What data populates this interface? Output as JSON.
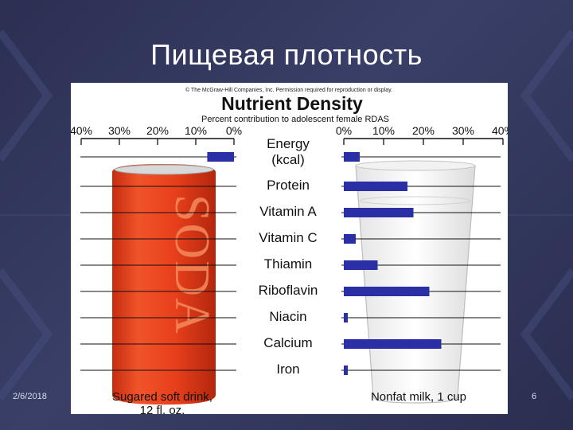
{
  "slide": {
    "title": "Пищевая плотность",
    "date": "2/6/2018",
    "page_number": "6"
  },
  "figure": {
    "copyright": "© The McGraw-Hill Companies, Inc. Permission required for reproduction or display.",
    "can_text": "SODA"
  },
  "colors": {
    "bar": "#2b2fa6",
    "can": "#e8401c",
    "background": "#2f3358",
    "text": "#111111"
  },
  "chart_data": {
    "type": "bar",
    "title": "Nutrient Density",
    "subtitle": "Percent contribution to adolescent female RDAS",
    "categories": [
      "Energy\n(kcal)",
      "Protein",
      "Vitamin A",
      "Vitamin C",
      "Thiamin",
      "Riboflavin",
      "Niacin",
      "Calcium",
      "Iron"
    ],
    "left_ticks": [
      "40%",
      "30%",
      "20%",
      "10%",
      "0%"
    ],
    "right_ticks": [
      "0%",
      "10%",
      "20%",
      "30%",
      "40%"
    ],
    "xlim": [
      0,
      40
    ],
    "grid": false,
    "series": [
      {
        "name": "Sugared soft drink,\n12 fl. oz.",
        "side": "left",
        "values": [
          7,
          0,
          0,
          0,
          0,
          0,
          0,
          0,
          0
        ]
      },
      {
        "name": "Nonfat milk, 1 cup",
        "side": "right",
        "values": [
          4,
          16,
          17.5,
          3,
          8.5,
          21.5,
          1,
          24.5,
          1
        ]
      }
    ]
  }
}
